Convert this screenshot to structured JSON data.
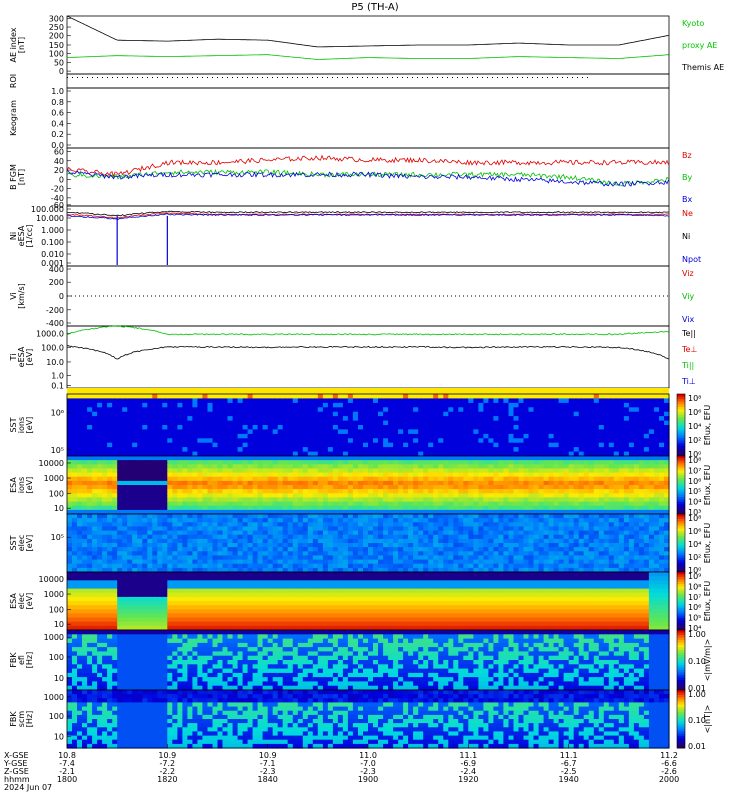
{
  "title": "P5 (TH-A)",
  "colors": {
    "red": "#e00000",
    "green": "#00c000",
    "blue": "#0000e0",
    "black": "#000000",
    "kyoto": "#00c800"
  },
  "panels": [
    {
      "key": "ae",
      "ylabels": [
        "AE index",
        "[nT]"
      ],
      "ticks": [
        "300",
        "250",
        "200",
        "150",
        "100",
        "50",
        "0"
      ],
      "legend": [
        {
          "text": "Kyoto",
          "color": "#00c800"
        },
        {
          "text": "proxy AE",
          "color": "#00c800"
        },
        {
          "text": "Themis AE",
          "color": "#000000"
        }
      ]
    },
    {
      "key": "roi",
      "ylabels": [
        "ROI"
      ],
      "ticks": [],
      "legend": []
    },
    {
      "key": "keogram",
      "ylabels": [
        "Keogram"
      ],
      "ticks": [
        "1.0",
        "0.8",
        "0.6",
        "0.4",
        "0.2",
        "0.0"
      ],
      "legend": []
    },
    {
      "key": "bfgm",
      "ylabels": [
        "B FGM",
        "[nT]"
      ],
      "ticks": [
        "60",
        "40",
        "20",
        "0",
        "-20",
        "-40",
        "-60"
      ],
      "legend": [
        {
          "text": "Bz",
          "color": "#e00000"
        },
        {
          "text": "By",
          "color": "#00c000"
        },
        {
          "text": "Bx",
          "color": "#0000e0"
        }
      ]
    },
    {
      "key": "ni",
      "ylabels": [
        "Ni",
        "eESA",
        "[1/cc]"
      ],
      "ticks": [
        "100.000",
        "10.000",
        "1.000",
        "0.100",
        "0.010",
        "0.001"
      ],
      "legend": [
        {
          "text": "Ne",
          "color": "#e00000"
        },
        {
          "text": "Ni",
          "color": "#000000"
        },
        {
          "text": "Npot",
          "color": "#0000e0"
        }
      ]
    },
    {
      "key": "vi",
      "ylabels": [
        "Vi",
        "[km/s]"
      ],
      "ticks": [
        "400",
        "200",
        "0",
        "-200",
        "-400"
      ],
      "legend": [
        {
          "text": "Viz",
          "color": "#e00000"
        },
        {
          "text": "Viy",
          "color": "#00c000"
        },
        {
          "text": "Vix",
          "color": "#0000e0"
        }
      ]
    },
    {
      "key": "ti",
      "ylabels": [
        "Ti",
        "eESA",
        "[eV]"
      ],
      "ticks": [
        "1000.0",
        "100.0",
        "10.0",
        "1.0",
        "0.1"
      ],
      "legend": [
        {
          "text": "Te||",
          "color": "#000000"
        },
        {
          "text": "Te⊥",
          "color": "#e00000"
        },
        {
          "text": "Ti||",
          "color": "#00c000"
        },
        {
          "text": "Ti⊥",
          "color": "#0000e0"
        }
      ]
    },
    {
      "key": "sst_i",
      "ylabels": [
        "SST",
        "ions",
        "[eV]"
      ],
      "ticks": [
        "10⁶",
        "10⁵"
      ],
      "legend": []
    },
    {
      "key": "esa_i",
      "ylabels": [
        "ESA",
        "ions",
        "[eV]"
      ],
      "ticks": [
        "10000",
        "1000",
        "100",
        "10"
      ],
      "legend": []
    },
    {
      "key": "sst_e",
      "ylabels": [
        "SST",
        "elec",
        "[eV]"
      ],
      "ticks": [
        "10⁵"
      ],
      "legend": []
    },
    {
      "key": "esa_e",
      "ylabels": [
        "ESA",
        "elec",
        "[eV]"
      ],
      "ticks": [
        "10000",
        "1000",
        "100",
        "10"
      ],
      "legend": []
    },
    {
      "key": "fbk_e",
      "ylabels": [
        "FBK",
        "efi",
        "[Hz]"
      ],
      "ticks": [
        "1000",
        "100",
        "10"
      ],
      "legend": []
    },
    {
      "key": "fbk_b",
      "ylabels": [
        "FBK",
        "scm",
        "[Hz]"
      ],
      "ticks": [
        "1000",
        "100",
        "10"
      ],
      "legend": []
    }
  ],
  "colorbars": [
    {
      "key": "sst_i",
      "label": "Eflux, EFU",
      "ticks": [
        "10⁸",
        "10⁶",
        "10⁴",
        "10²",
        "10⁰"
      ]
    },
    {
      "key": "esa_i",
      "label": "Eflux, EFU",
      "ticks": [
        "10⁸",
        "10⁷",
        "10⁶",
        "10⁵",
        "10⁴",
        "10³"
      ]
    },
    {
      "key": "sst_e",
      "label": "Eflux, EFU",
      "ticks": [
        "10⁸",
        "10⁶",
        "10⁴",
        "10²",
        "10⁰"
      ]
    },
    {
      "key": "esa_e",
      "label": "Eflux, EFU",
      "ticks": [
        "10⁹",
        "10⁸",
        "10⁷",
        "10⁶",
        "10⁵",
        "10⁴"
      ]
    },
    {
      "key": "fbk_e",
      "label": "<|mV/m|>",
      "ticks": [
        "1.00",
        "0.10",
        "0.01"
      ]
    },
    {
      "key": "fbk_b",
      "label": "<|nT|>",
      "ticks": [
        "1.00",
        "0.10",
        "0.01"
      ]
    }
  ],
  "axis": {
    "rowlabels": [
      "X-GSE",
      "Y-GSE",
      "Z-GSE",
      "hhmm",
      "2024 Jun 07"
    ],
    "ticks": [
      {
        "x": "10.8",
        "y": "-7.4",
        "z": "-2.1",
        "t": "1800"
      },
      {
        "x": "10.9",
        "y": "-7.2",
        "z": "-2.2",
        "t": "1820"
      },
      {
        "x": "10.9",
        "y": "-7.1",
        "z": "-2.3",
        "t": "1840"
      },
      {
        "x": "11.0",
        "y": "-7.0",
        "z": "-2.3",
        "t": "1900"
      },
      {
        "x": "11.1",
        "y": "-6.9",
        "z": "-2.4",
        "t": "1920"
      },
      {
        "x": "11.1",
        "y": "-6.7",
        "z": "-2.5",
        "t": "1940"
      },
      {
        "x": "11.2",
        "y": "-6.6",
        "z": "-2.6",
        "t": "2000"
      }
    ]
  },
  "chart_data": {
    "type": "line",
    "title": "P5 (TH-A)",
    "x": [
      1800,
      1810,
      1820,
      1830,
      1840,
      1850,
      1900,
      1910,
      1920,
      1930,
      1940,
      1950,
      2000
    ],
    "xlabel": "hhmm",
    "series": [
      {
        "name": "Themis AE",
        "panel": "ae",
        "values": [
          300,
          175,
          170,
          180,
          175,
          140,
          145,
          150,
          150,
          160,
          150,
          150,
          200
        ]
      },
      {
        "name": "Kyoto proxy AE",
        "panel": "ae",
        "values": [
          85,
          95,
          90,
          95,
          100,
          75,
          85,
          80,
          80,
          90,
          85,
          80,
          100
        ]
      },
      {
        "name": "Bz",
        "panel": "bfgm",
        "values": [
          15,
          5,
          30,
          30,
          35,
          40,
          35,
          35,
          30,
          30,
          30,
          30,
          30
        ]
      },
      {
        "name": "By",
        "panel": "bfgm",
        "values": [
          5,
          0,
          10,
          10,
          10,
          5,
          5,
          5,
          5,
          5,
          0,
          -15,
          -5
        ]
      },
      {
        "name": "Bx",
        "panel": "bfgm",
        "values": [
          10,
          0,
          5,
          5,
          5,
          5,
          5,
          0,
          0,
          -5,
          -10,
          -15,
          -10
        ]
      },
      {
        "name": "Ni",
        "panel": "ni",
        "values": [
          30,
          15,
          35,
          30,
          30,
          30,
          30,
          30,
          30,
          30,
          30,
          30,
          30
        ]
      },
      {
        "name": "Ne",
        "panel": "ni",
        "values": [
          20,
          10,
          25,
          20,
          20,
          20,
          20,
          20,
          20,
          20,
          20,
          20,
          20
        ]
      },
      {
        "name": "Npot",
        "panel": "ni",
        "values": [
          15,
          8,
          20,
          18,
          18,
          18,
          18,
          18,
          18,
          18,
          18,
          18,
          15
        ]
      },
      {
        "name": "Ti||",
        "panel": "ti",
        "values": [
          500,
          2000,
          500,
          500,
          500,
          500,
          500,
          500,
          500,
          500,
          500,
          500,
          800
        ]
      },
      {
        "name": "Te||",
        "panel": "ti",
        "values": [
          70,
          7,
          60,
          60,
          55,
          60,
          60,
          60,
          55,
          60,
          60,
          55,
          7
        ]
      }
    ],
    "ylim_ae": [
      0,
      300
    ],
    "ylim_b": [
      -60,
      60
    ]
  }
}
